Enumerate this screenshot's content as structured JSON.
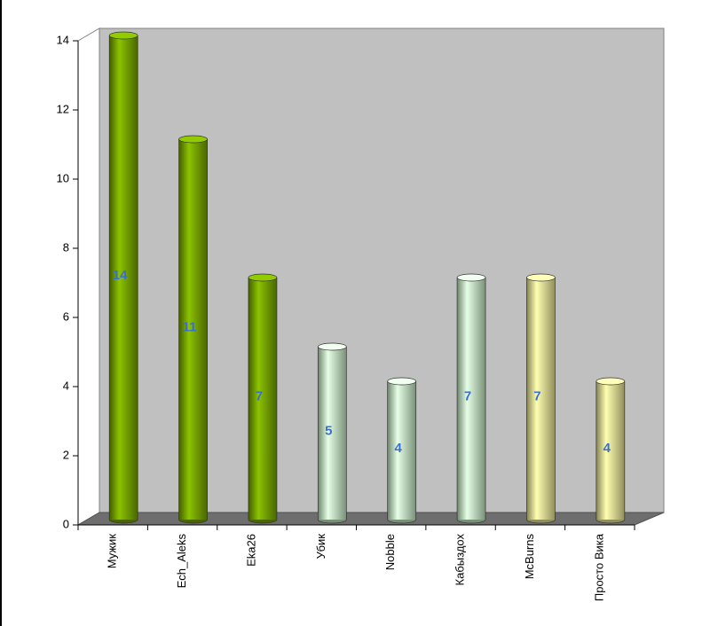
{
  "chart_data": {
    "type": "bar",
    "categories": [
      "Мужик",
      "Ech_Aleks",
      "Eka26",
      "Убик",
      "Nobble",
      "Кабыздох",
      "McBurns",
      "Просто Вика"
    ],
    "values": [
      14,
      11,
      7,
      5,
      4,
      7,
      7,
      4
    ],
    "colors": [
      "#7aaa00",
      "#7aaa00",
      "#7aaa00",
      "#c8f0c8",
      "#c8f0c8",
      "#c8f0c8",
      "#f2ec9a",
      "#f2ec9a"
    ],
    "ylim": [
      0,
      14
    ],
    "yticks": [
      0,
      2,
      4,
      6,
      8,
      10,
      12,
      14
    ]
  }
}
